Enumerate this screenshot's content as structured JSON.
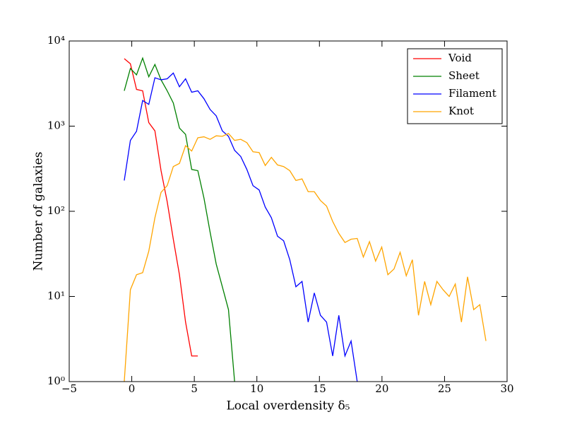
{
  "chart_data": {
    "type": "line",
    "xlabel": "Local overdensity δ₅",
    "ylabel": "Number of galaxies",
    "yscale": "log",
    "xlim": [
      -5,
      30
    ],
    "ylim": [
      1,
      10000
    ],
    "xticks": [
      {
        "value": -5,
        "label": "−5"
      },
      0,
      5,
      10,
      15,
      20,
      25,
      30
    ],
    "yticks": [
      {
        "value": 1,
        "label": "10⁰"
      },
      {
        "value": 10,
        "label": "10¹"
      },
      {
        "value": 100,
        "label": "10²"
      },
      {
        "value": 1000,
        "label": "10³"
      },
      {
        "value": 10000,
        "label": "10⁴"
      }
    ],
    "legend": "upper right",
    "series": [
      {
        "name": "Void",
        "color": "#ff0000",
        "x": [
          -0.6,
          -0.11,
          0.38,
          0.87,
          1.36,
          1.85,
          2.34,
          2.83,
          3.32,
          3.81,
          4.3,
          4.79,
          5.28
        ],
        "values": [
          6200,
          5400,
          2700,
          2600,
          1100,
          880,
          300,
          130,
          47,
          18,
          5,
          2,
          2
        ]
      },
      {
        "name": "Sheet",
        "color": "#008000",
        "x": [
          -0.6,
          -0.11,
          0.38,
          0.87,
          1.36,
          1.85,
          2.34,
          2.83,
          3.32,
          3.81,
          4.3,
          4.79,
          5.28,
          5.77,
          6.26,
          6.75,
          7.24,
          7.73,
          8.22
        ],
        "values": [
          2600,
          4750,
          4000,
          6300,
          3800,
          5300,
          3500,
          2600,
          1870,
          950,
          800,
          310,
          300,
          143,
          57,
          24,
          13,
          7,
          1
        ]
      },
      {
        "name": "Filament",
        "color": "#0000ff",
        "x": [
          -0.6,
          -0.11,
          0.38,
          0.87,
          1.36,
          1.85,
          2.34,
          2.83,
          3.32,
          3.81,
          4.3,
          4.79,
          5.28,
          5.77,
          6.26,
          6.75,
          7.24,
          7.73,
          8.22,
          8.71,
          9.2,
          9.69,
          10.18,
          10.67,
          11.16,
          11.65,
          12.14,
          12.63,
          13.12,
          13.61,
          14.1,
          14.59,
          15.08,
          15.57,
          16.06,
          16.55,
          17.04,
          17.53,
          18.02
        ],
        "values": [
          230,
          680,
          870,
          2000,
          1800,
          3700,
          3500,
          3600,
          4200,
          2900,
          3600,
          2500,
          2600,
          2100,
          1570,
          1320,
          880,
          760,
          520,
          440,
          310,
          200,
          178,
          112,
          84,
          51,
          45,
          27,
          13,
          15,
          5,
          11,
          6,
          5,
          2,
          6,
          2,
          3,
          1
        ]
      },
      {
        "name": "Knot",
        "color": "#ffa500",
        "x": [
          -0.6,
          -0.11,
          0.38,
          0.87,
          1.36,
          1.85,
          2.34,
          2.83,
          3.32,
          3.81,
          4.3,
          4.79,
          5.28,
          5.77,
          6.26,
          6.75,
          7.24,
          7.73,
          8.22,
          8.71,
          9.2,
          9.69,
          10.18,
          10.67,
          11.16,
          11.65,
          12.14,
          12.63,
          13.12,
          13.61,
          14.1,
          14.59,
          15.08,
          15.57,
          16.06,
          16.55,
          17.04,
          17.53,
          18.02,
          18.51,
          19.0,
          19.49,
          19.98,
          20.47,
          20.96,
          21.45,
          21.94,
          22.43,
          22.92,
          23.41,
          23.9,
          24.39,
          24.88,
          25.37,
          25.86,
          26.35,
          26.84,
          27.33,
          27.82,
          28.31
        ],
        "values": [
          1,
          12,
          18,
          19,
          34,
          84,
          167,
          200,
          335,
          365,
          590,
          510,
          730,
          750,
          700,
          770,
          760,
          820,
          680,
          700,
          640,
          500,
          490,
          345,
          430,
          350,
          335,
          300,
          230,
          240,
          170,
          170,
          134,
          115,
          76,
          55,
          43,
          47,
          48,
          29,
          44,
          26,
          38,
          18,
          21,
          33,
          17.5,
          27,
          6,
          15,
          8,
          15,
          12,
          10,
          14,
          5,
          17,
          7,
          8,
          3
        ]
      }
    ]
  }
}
